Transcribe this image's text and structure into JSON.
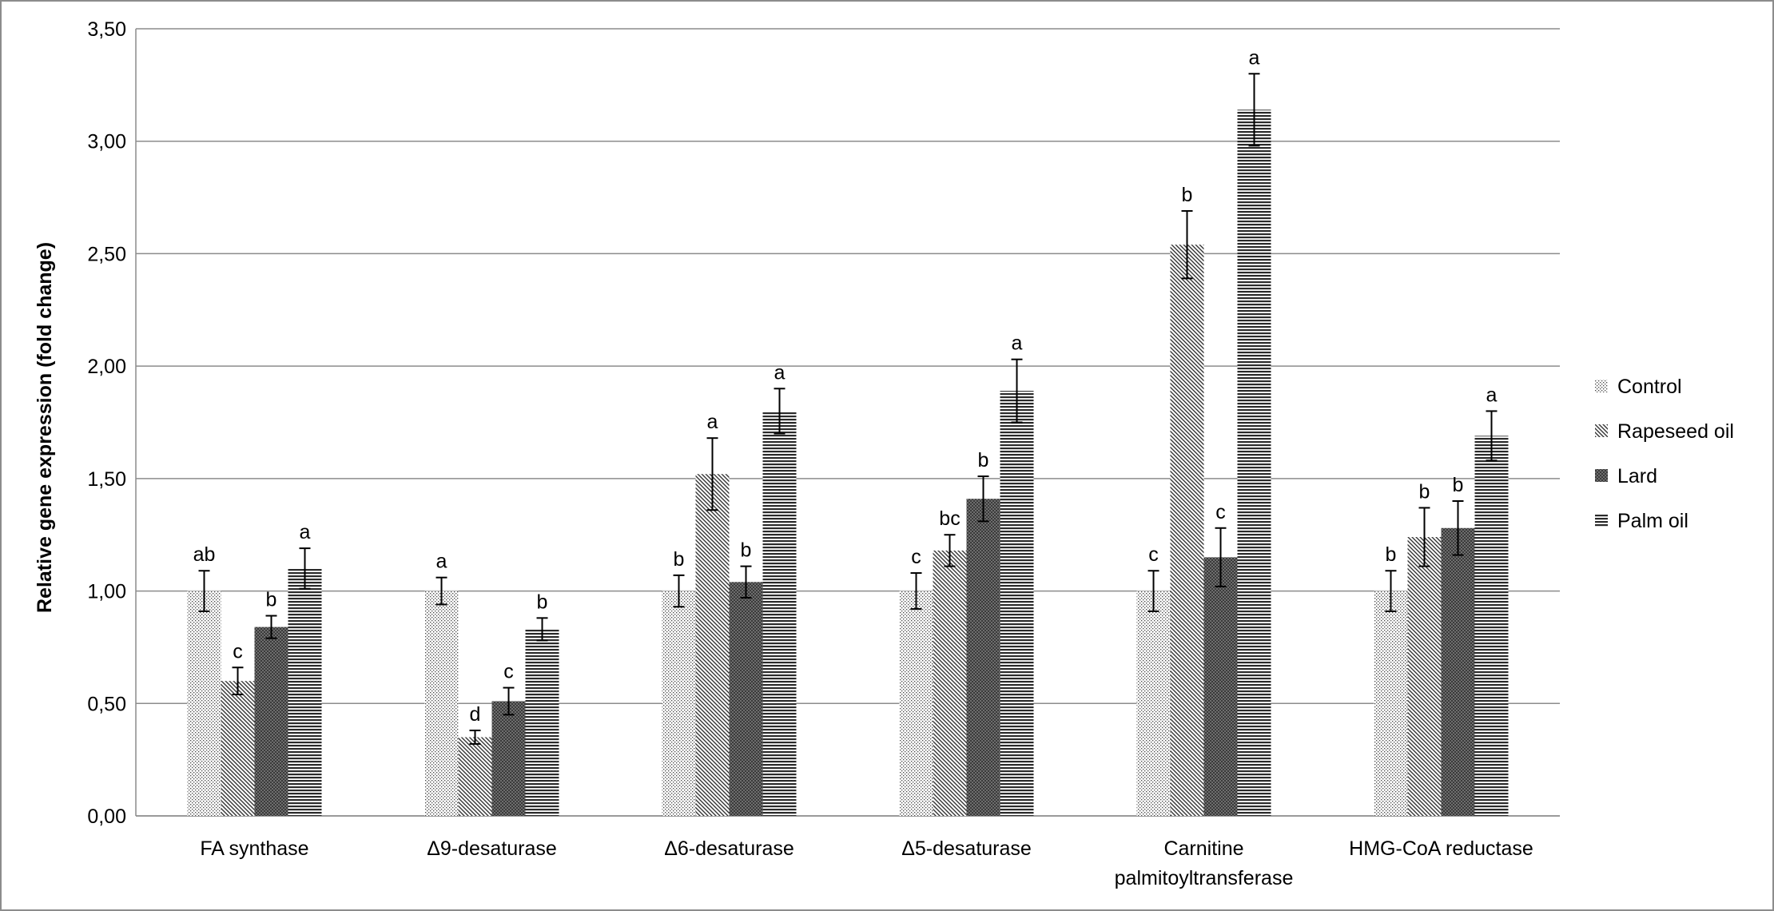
{
  "chart_data": {
    "type": "bar",
    "ylabel": "Relative gene expression (fold change)",
    "xlabel": "",
    "title": "",
    "ylim": [
      0,
      3.5
    ],
    "y_ticks": [
      "0,00",
      "0,50",
      "1,00",
      "1,50",
      "2,00",
      "2,50",
      "3,00",
      "3,50"
    ],
    "grid": true,
    "legend_position": "right",
    "categories": [
      [
        "FA synthase"
      ],
      [
        "Δ9-desaturase"
      ],
      [
        "Δ6-desaturase"
      ],
      [
        "Δ5-desaturase"
      ],
      [
        "Carnitine",
        "palmitoyltransferase"
      ],
      [
        "HMG-CoA reductase"
      ]
    ],
    "series": [
      {
        "name": "Control",
        "pattern": "dots",
        "values": [
          1.0,
          1.0,
          1.0,
          1.0,
          1.0,
          1.0
        ],
        "errors": [
          0.09,
          0.06,
          0.07,
          0.08,
          0.09,
          0.09
        ],
        "letters": [
          "ab",
          "a",
          "b",
          "c",
          "c",
          "b"
        ]
      },
      {
        "name": "Rapeseed oil",
        "pattern": "diagonal",
        "values": [
          0.6,
          0.35,
          1.52,
          1.18,
          2.54,
          1.24
        ],
        "errors": [
          0.06,
          0.03,
          0.16,
          0.07,
          0.15,
          0.13
        ],
        "letters": [
          "c",
          "d",
          "a",
          "bc",
          "b",
          "b"
        ]
      },
      {
        "name": "Lard",
        "pattern": "dense",
        "values": [
          0.84,
          0.51,
          1.04,
          1.41,
          1.15,
          1.28
        ],
        "errors": [
          0.05,
          0.06,
          0.07,
          0.1,
          0.13,
          0.12
        ],
        "letters": [
          "b",
          "c",
          "b",
          "b",
          "c",
          "b"
        ]
      },
      {
        "name": "Palm oil",
        "pattern": "horizontal",
        "values": [
          1.1,
          0.83,
          1.8,
          1.89,
          3.14,
          1.69
        ],
        "errors": [
          0.09,
          0.05,
          0.1,
          0.14,
          0.16,
          0.11
        ],
        "letters": [
          "a",
          "b",
          "a",
          "a",
          "a",
          "a"
        ]
      }
    ],
    "colors": {
      "frame": "#8c8c8c",
      "grid": "#8c8c8c",
      "ink": "#000000"
    }
  }
}
